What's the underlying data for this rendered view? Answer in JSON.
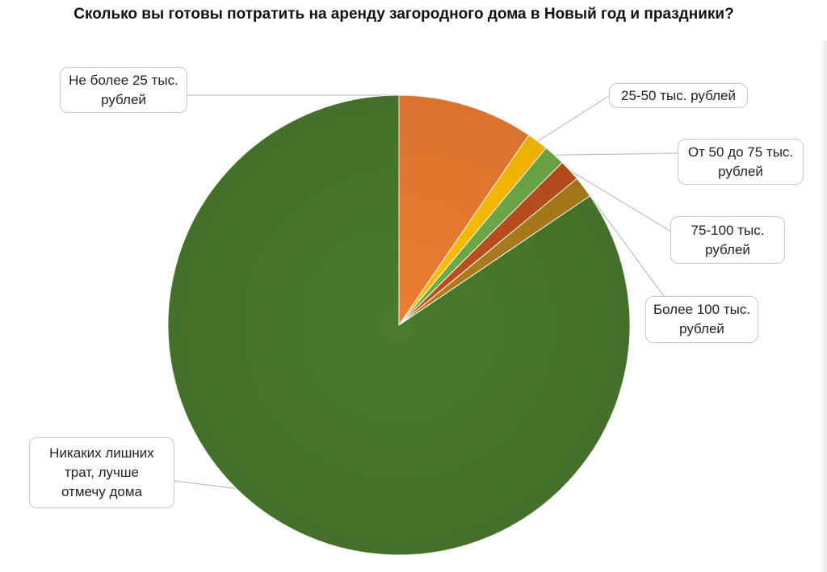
{
  "chart_data": {
    "type": "pie",
    "title": "Сколько вы готовы потратить на аренду загородного дома в Новый год и праздники?",
    "slices": [
      {
        "label": "Не более 25 тыс. рублей",
        "value": 9.5,
        "color": "#ED7D31"
      },
      {
        "label": "25-50 тыс. рублей",
        "value": 1.5,
        "color": "#FFC000"
      },
      {
        "label": "От 50 до 75 тыс. рублей",
        "value": 1.5,
        "color": "#70AD47"
      },
      {
        "label": "75-100 тыс. рублей",
        "value": 1.5,
        "color": "#C0501F"
      },
      {
        "label": "Более 100 тыс. рублей",
        "value": 1.5,
        "color": "#B07F1C"
      },
      {
        "label": "Никаких лишних трат, лучше отмечу дома",
        "value": 84.5,
        "color": "#4A7A2C"
      }
    ],
    "legend": "none",
    "data_labels": "callouts"
  }
}
